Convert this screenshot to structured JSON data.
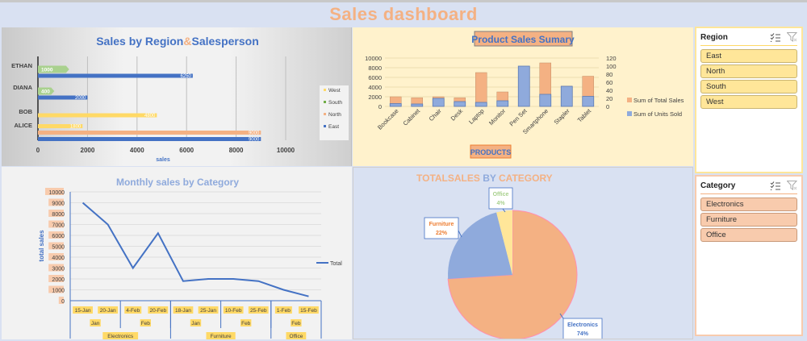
{
  "dashboard": {
    "title": "Sales dashboard"
  },
  "chart_data": [
    {
      "id": "region_salesperson",
      "type": "bar",
      "orientation": "horizontal",
      "title": "Sales by Region&Salesperson",
      "title_parts": [
        "Sales by Region",
        "&",
        "Salesperson"
      ],
      "xlabel": "sales",
      "ylabel": "",
      "xlim": [
        0,
        10000
      ],
      "x_ticks": [
        0,
        2000,
        4000,
        6000,
        8000,
        10000
      ],
      "categories": [
        "ALICE",
        "BOB",
        "DIANA",
        "ETHAN"
      ],
      "series": [
        {
          "name": "East",
          "color": "#4472c4",
          "values": [
            9000,
            null,
            2000,
            6250
          ]
        },
        {
          "name": "North",
          "color": "#f4b183",
          "values": [
            9000,
            null,
            null,
            null
          ]
        },
        {
          "name": "South",
          "color": "#70ad47",
          "values": [
            null,
            null,
            400,
            1000
          ]
        },
        {
          "name": "West",
          "color": "#ffd966",
          "values": [
            1800,
            4800,
            null,
            null
          ]
        }
      ],
      "legend": [
        "West",
        "South",
        "North",
        "East"
      ],
      "legend_position": "right",
      "grid": true
    },
    {
      "id": "product_sales",
      "type": "bar",
      "stacked": true,
      "title": "Product Sales Sumary",
      "xlabel": "PRODUCTS",
      "ylim": [
        0,
        10000
      ],
      "y_ticks": [
        0,
        2000,
        4000,
        6000,
        8000,
        10000
      ],
      "y2lim": [
        0,
        120
      ],
      "y2_ticks": [
        0,
        20,
        40,
        60,
        80,
        100,
        120
      ],
      "categories": [
        "Bookcase",
        "Cabinet",
        "Chair",
        "Desk",
        "Laptop",
        "Monitor",
        "Pen Set",
        "Smartphone",
        "Stapler",
        "Tablet"
      ],
      "series": [
        {
          "name": "Sum of Units Sold",
          "axis": "secondary",
          "color": "#8faadc",
          "values": [
            7,
            6,
            20,
            12,
            10,
            14,
            100,
            30,
            50,
            25
          ]
        },
        {
          "name": "Sum of Total Sales",
          "axis": "primary",
          "color": "#f4b183",
          "values": [
            2000,
            1800,
            2000,
            1800,
            7000,
            3000,
            8300,
            9000,
            4200,
            6250
          ]
        }
      ],
      "legend": [
        "Sum of Total Sales",
        "Sum of Units Sold"
      ],
      "legend_position": "right",
      "grid": true
    },
    {
      "id": "monthly_sales",
      "type": "line",
      "title": "Monthly sales by Category",
      "ylabel": "total sales",
      "ylim": [
        0,
        10000
      ],
      "y_ticks": [
        0,
        1000,
        2000,
        3000,
        4000,
        5000,
        6000,
        7000,
        8000,
        9000,
        10000
      ],
      "categories": [
        "15-Jan",
        "20-Jan",
        "4-Feb",
        "20-Feb",
        "18-Jan",
        "25-Jan",
        "10-Feb",
        "25-Feb",
        "1-Feb",
        "15-Feb"
      ],
      "month_groups": [
        {
          "label": "Jan",
          "span": 2
        },
        {
          "label": "Feb",
          "span": 2
        },
        {
          "label": "Jan",
          "span": 2
        },
        {
          "label": "Feb",
          "span": 2
        },
        {
          "label": "Feb",
          "span": 2
        }
      ],
      "category_groups": [
        {
          "label": "Electronics",
          "span": 4
        },
        {
          "label": "Furniture",
          "span": 4
        },
        {
          "label": "Office",
          "span": 2
        }
      ],
      "series": [
        {
          "name": "Total",
          "color": "#4472c4",
          "values": [
            9000,
            7000,
            3000,
            6200,
            1800,
            2000,
            2000,
            1800,
            1000,
            400
          ]
        }
      ],
      "legend_position": "right",
      "grid": true
    },
    {
      "id": "category_pie",
      "type": "pie",
      "title": "TOTALSALES BY CATEGORY",
      "title_parts": [
        "TOTALSALES",
        " BY ",
        "CATEGORY"
      ],
      "categories": [
        "Electronics",
        "Furniture",
        "Office"
      ],
      "values": [
        74,
        22,
        4
      ],
      "labels": [
        "74%",
        "22%",
        "4%"
      ],
      "colors": [
        "#f4b183",
        "#8faadc",
        "#ffe699"
      ]
    }
  ],
  "slicers": {
    "region": {
      "title": "Region",
      "items": [
        "East",
        "North",
        "South",
        "West"
      ]
    },
    "category": {
      "title": "Category",
      "items": [
        "Electronics",
        "Furniture",
        "Office"
      ]
    }
  }
}
